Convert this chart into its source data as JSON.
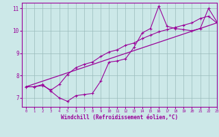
{
  "xlabel": "Windchill (Refroidissement éolien,°C)",
  "bg_color": "#cce8e8",
  "line_color": "#990099",
  "grid_color": "#99bbbb",
  "hours": [
    0,
    1,
    2,
    3,
    4,
    5,
    6,
    7,
    8,
    9,
    10,
    11,
    12,
    13,
    14,
    15,
    16,
    17,
    18,
    19,
    20,
    21,
    22,
    23
  ],
  "curve1": [
    7.5,
    7.5,
    7.6,
    7.3,
    7.0,
    6.85,
    7.1,
    7.15,
    7.2,
    7.75,
    8.6,
    8.65,
    8.75,
    9.25,
    9.9,
    10.1,
    11.1,
    10.2,
    10.1,
    10.05,
    10.0,
    10.1,
    11.0,
    10.4
  ],
  "curve2": [
    7.5,
    7.5,
    7.55,
    7.35,
    7.6,
    8.05,
    8.35,
    8.5,
    8.6,
    8.85,
    9.05,
    9.15,
    9.35,
    9.45,
    9.65,
    9.8,
    9.95,
    10.05,
    10.15,
    10.25,
    10.35,
    10.55,
    10.65,
    10.35
  ],
  "line_x": [
    0,
    23
  ],
  "line_y": [
    7.5,
    10.35
  ],
  "ylim": [
    6.6,
    11.25
  ],
  "xlim": [
    -0.5,
    23
  ],
  "yticks": [
    7,
    8,
    9,
    10,
    11
  ],
  "xticks": [
    0,
    1,
    2,
    3,
    4,
    5,
    6,
    7,
    8,
    9,
    10,
    11,
    12,
    13,
    14,
    15,
    16,
    17,
    18,
    19,
    20,
    21,
    22,
    23
  ]
}
